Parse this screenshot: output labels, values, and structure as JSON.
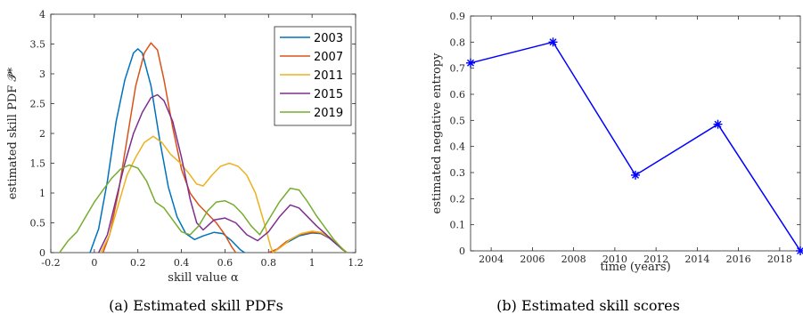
{
  "colors": {
    "axis": "#262626",
    "s2003": "#0072BD",
    "s2007": "#D95319",
    "s2011": "#EDB120",
    "s2015": "#7E2F8E",
    "s2019": "#77AC30",
    "scores": "#0000FF"
  },
  "captions": {
    "left": "(a) Estimated skill PDFs",
    "right": "(b) Estimated skill scores"
  },
  "chart_data": [
    {
      "type": "line",
      "xlabel": "skill value α",
      "ylabel": "estimated skill PDF 𝒫̂*",
      "xlim": [
        -0.2,
        1.2
      ],
      "ylim": [
        0,
        4
      ],
      "x_ticks": [
        "-0.2",
        "0",
        "0.2",
        "0.4",
        "0.6",
        "0.8",
        "1",
        "1.2"
      ],
      "y_ticks": [
        "0",
        "0.5",
        "1",
        "1.5",
        "2",
        "2.5",
        "3",
        "3.5",
        "4"
      ],
      "legend_position": "top-right",
      "grid": false,
      "series": [
        {
          "name": "2003",
          "segments": [
            [
              [
                -0.02,
                0
              ],
              [
                0.02,
                0.4
              ],
              [
                0.06,
                1.2
              ],
              [
                0.1,
                2.2
              ],
              [
                0.14,
                2.9
              ],
              [
                0.18,
                3.35
              ],
              [
                0.2,
                3.42
              ],
              [
                0.22,
                3.35
              ],
              [
                0.26,
                2.8
              ],
              [
                0.3,
                1.9
              ],
              [
                0.34,
                1.1
              ],
              [
                0.38,
                0.6
              ],
              [
                0.42,
                0.32
              ],
              [
                0.46,
                0.22
              ],
              [
                0.5,
                0.28
              ],
              [
                0.55,
                0.34
              ],
              [
                0.59,
                0.32
              ],
              [
                0.63,
                0.2
              ],
              [
                0.67,
                0.05
              ],
              [
                0.69,
                0
              ]
            ],
            [
              [
                0.8,
                0
              ],
              [
                0.84,
                0.05
              ],
              [
                0.88,
                0.16
              ],
              [
                0.94,
                0.28
              ],
              [
                1.0,
                0.33
              ],
              [
                1.04,
                0.32
              ],
              [
                1.08,
                0.24
              ],
              [
                1.12,
                0.12
              ],
              [
                1.16,
                0
              ]
            ]
          ]
        },
        {
          "name": "2007",
          "segments": [
            [
              [
                0.04,
                0
              ],
              [
                0.07,
                0.3
              ],
              [
                0.11,
                1.0
              ],
              [
                0.15,
                1.9
              ],
              [
                0.19,
                2.8
              ],
              [
                0.23,
                3.35
              ],
              [
                0.26,
                3.52
              ],
              [
                0.29,
                3.4
              ],
              [
                0.32,
                2.9
              ],
              [
                0.36,
                2.1
              ],
              [
                0.4,
                1.4
              ],
              [
                0.44,
                1.0
              ],
              [
                0.48,
                0.8
              ],
              [
                0.52,
                0.65
              ],
              [
                0.56,
                0.5
              ],
              [
                0.6,
                0.3
              ],
              [
                0.63,
                0.1
              ],
              [
                0.65,
                0
              ]
            ],
            [
              [
                0.8,
                0
              ],
              [
                0.84,
                0.06
              ],
              [
                0.88,
                0.18
              ],
              [
                0.94,
                0.3
              ],
              [
                1.0,
                0.34
              ],
              [
                1.04,
                0.33
              ],
              [
                1.08,
                0.25
              ],
              [
                1.12,
                0.13
              ],
              [
                1.16,
                0
              ]
            ]
          ]
        },
        {
          "name": "2011",
          "segments": [
            [
              [
                0.03,
                0
              ],
              [
                0.07,
                0.3
              ],
              [
                0.11,
                0.8
              ],
              [
                0.15,
                1.3
              ],
              [
                0.19,
                1.6
              ],
              [
                0.23,
                1.85
              ],
              [
                0.27,
                1.95
              ],
              [
                0.31,
                1.85
              ],
              [
                0.35,
                1.65
              ],
              [
                0.39,
                1.52
              ],
              [
                0.43,
                1.35
              ],
              [
                0.47,
                1.15
              ],
              [
                0.5,
                1.12
              ],
              [
                0.54,
                1.3
              ],
              [
                0.58,
                1.45
              ],
              [
                0.62,
                1.5
              ],
              [
                0.66,
                1.45
              ],
              [
                0.7,
                1.3
              ],
              [
                0.74,
                1.0
              ],
              [
                0.78,
                0.5
              ],
              [
                0.81,
                0.1
              ],
              [
                0.82,
                0
              ]
            ],
            [
              [
                0.82,
                0
              ],
              [
                0.86,
                0.1
              ],
              [
                0.9,
                0.22
              ],
              [
                0.95,
                0.32
              ],
              [
                1.0,
                0.36
              ],
              [
                1.04,
                0.34
              ],
              [
                1.08,
                0.26
              ],
              [
                1.12,
                0.13
              ],
              [
                1.16,
                0
              ]
            ]
          ]
        },
        {
          "name": "2015",
          "segments": [
            [
              [
                0.02,
                0
              ],
              [
                0.06,
                0.3
              ],
              [
                0.1,
                0.9
              ],
              [
                0.14,
                1.5
              ],
              [
                0.18,
                2.0
              ],
              [
                0.22,
                2.35
              ],
              [
                0.26,
                2.6
              ],
              [
                0.29,
                2.65
              ],
              [
                0.32,
                2.55
              ],
              [
                0.36,
                2.2
              ],
              [
                0.4,
                1.6
              ],
              [
                0.44,
                0.9
              ],
              [
                0.47,
                0.5
              ],
              [
                0.5,
                0.38
              ],
              [
                0.55,
                0.55
              ],
              [
                0.6,
                0.58
              ],
              [
                0.65,
                0.5
              ],
              [
                0.7,
                0.3
              ],
              [
                0.75,
                0.2
              ],
              [
                0.8,
                0.35
              ],
              [
                0.85,
                0.6
              ],
              [
                0.9,
                0.8
              ],
              [
                0.94,
                0.75
              ],
              [
                0.98,
                0.6
              ],
              [
                1.02,
                0.45
              ],
              [
                1.06,
                0.32
              ],
              [
                1.1,
                0.18
              ],
              [
                1.14,
                0.05
              ],
              [
                1.16,
                0
              ]
            ]
          ]
        },
        {
          "name": "2019",
          "segments": [
            [
              [
                -0.16,
                0
              ],
              [
                -0.12,
                0.2
              ],
              [
                -0.08,
                0.35
              ],
              [
                -0.04,
                0.6
              ],
              [
                0.0,
                0.85
              ],
              [
                0.04,
                1.05
              ],
              [
                0.08,
                1.25
              ],
              [
                0.12,
                1.4
              ],
              [
                0.16,
                1.47
              ],
              [
                0.2,
                1.42
              ],
              [
                0.24,
                1.2
              ],
              [
                0.28,
                0.85
              ],
              [
                0.32,
                0.75
              ],
              [
                0.36,
                0.55
              ],
              [
                0.4,
                0.35
              ],
              [
                0.44,
                0.3
              ],
              [
                0.48,
                0.45
              ],
              [
                0.52,
                0.7
              ],
              [
                0.56,
                0.85
              ],
              [
                0.6,
                0.87
              ],
              [
                0.64,
                0.8
              ],
              [
                0.68,
                0.65
              ],
              [
                0.72,
                0.45
              ],
              [
                0.76,
                0.3
              ],
              [
                0.8,
                0.55
              ],
              [
                0.85,
                0.85
              ],
              [
                0.9,
                1.08
              ],
              [
                0.94,
                1.05
              ],
              [
                0.98,
                0.85
              ],
              [
                1.02,
                0.62
              ],
              [
                1.06,
                0.42
              ],
              [
                1.1,
                0.22
              ],
              [
                1.14,
                0.06
              ],
              [
                1.16,
                0
              ]
            ]
          ]
        }
      ]
    },
    {
      "type": "line",
      "xlabel": "time (years)",
      "ylabel": "estimated negative entropy",
      "xlim": [
        2003,
        2019
      ],
      "ylim": [
        0,
        0.9
      ],
      "x_ticks": [
        "2004",
        "2006",
        "2008",
        "2010",
        "2012",
        "2014",
        "2016",
        "2018"
      ],
      "y_ticks": [
        "0",
        "0.1",
        "0.2",
        "0.3",
        "0.4",
        "0.5",
        "0.6",
        "0.7",
        "0.8",
        "0.9"
      ],
      "grid": false,
      "marker": "asterisk",
      "series": [
        {
          "x": [
            2003,
            2007,
            2011,
            2015,
            2019
          ],
          "values": [
            0.72,
            0.8,
            0.29,
            0.485,
            0.0
          ]
        }
      ]
    }
  ]
}
